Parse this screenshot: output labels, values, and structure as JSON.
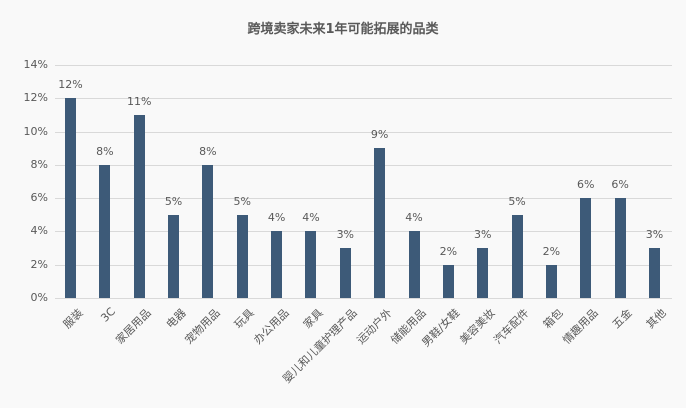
{
  "chart_data": {
    "type": "bar",
    "title": "跨境卖家未来1年可能拓展的品类",
    "xlabel": "",
    "ylabel": "",
    "ylim": [
      0,
      14
    ],
    "yticks": [
      "0%",
      "2%",
      "4%",
      "6%",
      "8%",
      "10%",
      "12%",
      "14%"
    ],
    "grid": true,
    "legend": "none",
    "bar_color": "#3d5a78",
    "categories": [
      "服装",
      "3C",
      "家居用品",
      "电器",
      "宠物用品",
      "玩具",
      "办公用品",
      "家具",
      "婴儿和儿童护理产品",
      "运动户外",
      "储能用品",
      "男鞋/女鞋",
      "美容美妆",
      "汽车配件",
      "箱包",
      "情趣用品",
      "五金",
      "其他"
    ],
    "values": [
      12,
      8,
      11,
      5,
      8,
      5,
      4,
      4,
      3,
      9,
      4,
      2,
      3,
      5,
      2,
      6,
      6,
      3
    ],
    "value_labels": [
      "12%",
      "8%",
      "11%",
      "5%",
      "8%",
      "5%",
      "4%",
      "4%",
      "3%",
      "9%",
      "4%",
      "2%",
      "3%",
      "5%",
      "2%",
      "6%",
      "6%",
      "3%"
    ]
  }
}
